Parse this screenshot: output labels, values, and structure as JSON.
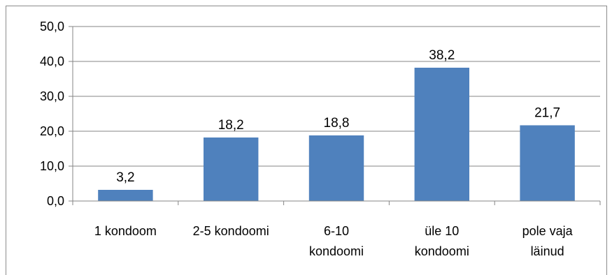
{
  "chart_data": {
    "type": "bar",
    "categories": [
      [
        "1 kondoom"
      ],
      [
        "2-5 kondoomi"
      ],
      [
        "6-10",
        "kondoomi"
      ],
      [
        "üle 10",
        "kondoomi"
      ],
      [
        "pole vaja",
        "läinud"
      ]
    ],
    "values": [
      3.2,
      18.2,
      18.8,
      38.2,
      21.7
    ],
    "data_labels": [
      "3,2",
      "18,2",
      "18,8",
      "38,2",
      "21,7"
    ],
    "yticks": [
      "0,0",
      "10,0",
      "20,0",
      "30,0",
      "40,0",
      "50,0"
    ],
    "ylim": [
      0,
      50
    ],
    "grid": true,
    "legend": "none",
    "title": "",
    "xlabel": "",
    "ylabel": "",
    "colors": {
      "bar": "#4f81bd",
      "grid": "#868686",
      "axis": "#868686"
    }
  }
}
